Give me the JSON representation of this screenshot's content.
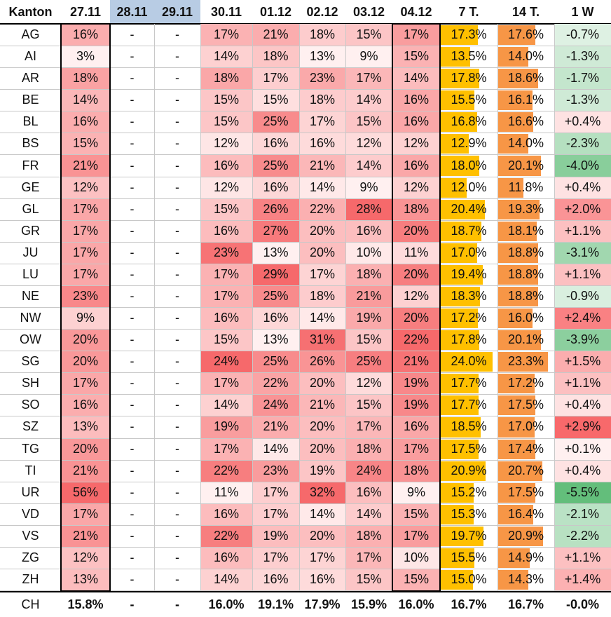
{
  "table": {
    "columns": [
      "Kanton",
      "27.11",
      "28.11",
      "29.11",
      "30.11",
      "01.12",
      "02.12",
      "03.12",
      "04.12",
      "7 T.",
      "14 T.",
      "1 W"
    ],
    "weekend_header_color": "#b8cce4",
    "bar_colors": {
      "seven_day": "#ffc000",
      "fourteen_day": "#f79646"
    },
    "rows": [
      {
        "kanton": "AG",
        "days": [
          "16%",
          "-",
          "-",
          "17%",
          "21%",
          "18%",
          "15%",
          "17%"
        ],
        "avg7": "17.3%",
        "avg14": "17.6%",
        "change": "-0.7%"
      },
      {
        "kanton": "AI",
        "days": [
          "3%",
          "-",
          "-",
          "14%",
          "18%",
          "13%",
          "9%",
          "15%"
        ],
        "avg7": "13.5%",
        "avg14": "14.0%",
        "change": "-1.3%"
      },
      {
        "kanton": "AR",
        "days": [
          "18%",
          "-",
          "-",
          "18%",
          "17%",
          "23%",
          "17%",
          "14%"
        ],
        "avg7": "17.8%",
        "avg14": "18.6%",
        "change": "-1.7%"
      },
      {
        "kanton": "BE",
        "days": [
          "14%",
          "-",
          "-",
          "15%",
          "15%",
          "18%",
          "14%",
          "16%"
        ],
        "avg7": "15.5%",
        "avg14": "16.1%",
        "change": "-1.3%"
      },
      {
        "kanton": "BL",
        "days": [
          "16%",
          "-",
          "-",
          "15%",
          "25%",
          "17%",
          "15%",
          "16%"
        ],
        "avg7": "16.8%",
        "avg14": "16.6%",
        "change": "+0.4%"
      },
      {
        "kanton": "BS",
        "days": [
          "15%",
          "-",
          "-",
          "12%",
          "16%",
          "16%",
          "12%",
          "12%"
        ],
        "avg7": "12.9%",
        "avg14": "14.0%",
        "change": "-2.3%"
      },
      {
        "kanton": "FR",
        "days": [
          "21%",
          "-",
          "-",
          "16%",
          "25%",
          "21%",
          "14%",
          "16%"
        ],
        "avg7": "18.0%",
        "avg14": "20.1%",
        "change": "-4.0%"
      },
      {
        "kanton": "GE",
        "days": [
          "12%",
          "-",
          "-",
          "12%",
          "16%",
          "14%",
          "9%",
          "12%"
        ],
        "avg7": "12.0%",
        "avg14": "11.8%",
        "change": "+0.4%"
      },
      {
        "kanton": "GL",
        "days": [
          "17%",
          "-",
          "-",
          "15%",
          "26%",
          "22%",
          "28%",
          "18%"
        ],
        "avg7": "20.4%",
        "avg14": "19.3%",
        "change": "+2.0%"
      },
      {
        "kanton": "GR",
        "days": [
          "17%",
          "-",
          "-",
          "16%",
          "27%",
          "20%",
          "16%",
          "20%"
        ],
        "avg7": "18.7%",
        "avg14": "18.1%",
        "change": "+1.1%"
      },
      {
        "kanton": "JU",
        "days": [
          "17%",
          "-",
          "-",
          "23%",
          "13%",
          "20%",
          "10%",
          "11%"
        ],
        "avg7": "17.0%",
        "avg14": "18.8%",
        "change": "-3.1%"
      },
      {
        "kanton": "LU",
        "days": [
          "17%",
          "-",
          "-",
          "17%",
          "29%",
          "17%",
          "18%",
          "20%"
        ],
        "avg7": "19.4%",
        "avg14": "18.8%",
        "change": "+1.1%"
      },
      {
        "kanton": "NE",
        "days": [
          "23%",
          "-",
          "-",
          "17%",
          "25%",
          "18%",
          "21%",
          "12%"
        ],
        "avg7": "18.3%",
        "avg14": "18.8%",
        "change": "-0.9%"
      },
      {
        "kanton": "NW",
        "days": [
          "9%",
          "-",
          "-",
          "16%",
          "16%",
          "14%",
          "19%",
          "20%"
        ],
        "avg7": "17.2%",
        "avg14": "16.0%",
        "change": "+2.4%"
      },
      {
        "kanton": "OW",
        "days": [
          "20%",
          "-",
          "-",
          "15%",
          "13%",
          "31%",
          "15%",
          "22%"
        ],
        "avg7": "17.8%",
        "avg14": "20.1%",
        "change": "-3.9%"
      },
      {
        "kanton": "SG",
        "days": [
          "20%",
          "-",
          "-",
          "24%",
          "25%",
          "26%",
          "25%",
          "21%"
        ],
        "avg7": "24.0%",
        "avg14": "23.3%",
        "change": "+1.5%"
      },
      {
        "kanton": "SH",
        "days": [
          "17%",
          "-",
          "-",
          "17%",
          "22%",
          "20%",
          "12%",
          "19%"
        ],
        "avg7": "17.7%",
        "avg14": "17.2%",
        "change": "+1.1%"
      },
      {
        "kanton": "SO",
        "days": [
          "16%",
          "-",
          "-",
          "14%",
          "24%",
          "21%",
          "15%",
          "19%"
        ],
        "avg7": "17.7%",
        "avg14": "17.5%",
        "change": "+0.4%"
      },
      {
        "kanton": "SZ",
        "days": [
          "13%",
          "-",
          "-",
          "19%",
          "21%",
          "20%",
          "17%",
          "16%"
        ],
        "avg7": "18.5%",
        "avg14": "17.0%",
        "change": "+2.9%"
      },
      {
        "kanton": "TG",
        "days": [
          "20%",
          "-",
          "-",
          "17%",
          "14%",
          "20%",
          "18%",
          "17%"
        ],
        "avg7": "17.5%",
        "avg14": "17.4%",
        "change": "+0.1%"
      },
      {
        "kanton": "TI",
        "days": [
          "21%",
          "-",
          "-",
          "22%",
          "23%",
          "19%",
          "24%",
          "18%"
        ],
        "avg7": "20.9%",
        "avg14": "20.7%",
        "change": "+0.4%"
      },
      {
        "kanton": "UR",
        "days": [
          "56%",
          "-",
          "-",
          "11%",
          "17%",
          "32%",
          "16%",
          "9%"
        ],
        "avg7": "15.2%",
        "avg14": "17.5%",
        "change": "-5.5%"
      },
      {
        "kanton": "VD",
        "days": [
          "17%",
          "-",
          "-",
          "16%",
          "17%",
          "14%",
          "14%",
          "15%"
        ],
        "avg7": "15.3%",
        "avg14": "16.4%",
        "change": "-2.1%"
      },
      {
        "kanton": "VS",
        "days": [
          "21%",
          "-",
          "-",
          "22%",
          "19%",
          "20%",
          "18%",
          "17%"
        ],
        "avg7": "19.7%",
        "avg14": "20.9%",
        "change": "-2.2%"
      },
      {
        "kanton": "ZG",
        "days": [
          "12%",
          "-",
          "-",
          "16%",
          "17%",
          "17%",
          "17%",
          "10%"
        ],
        "avg7": "15.5%",
        "avg14": "14.9%",
        "change": "+1.1%"
      },
      {
        "kanton": "ZH",
        "days": [
          "13%",
          "-",
          "-",
          "14%",
          "16%",
          "16%",
          "15%",
          "15%"
        ],
        "avg7": "15.0%",
        "avg14": "14.3%",
        "change": "+1.4%"
      }
    ],
    "total": {
      "kanton": "CH",
      "days": [
        "15.8%",
        "-",
        "-",
        "16.0%",
        "19.1%",
        "17.9%",
        "15.9%",
        "16.0%"
      ],
      "avg7": "16.7%",
      "avg14": "16.7%",
      "change": "-0.0%"
    }
  }
}
